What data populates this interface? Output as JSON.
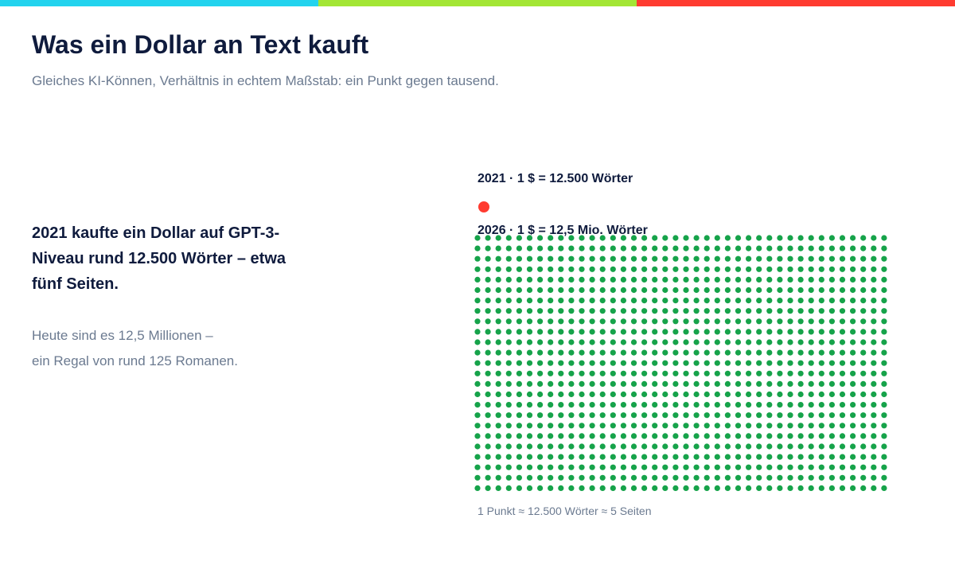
{
  "header": {
    "stripe_colors": [
      "#22d3ee",
      "#a3e635",
      "#ff3b30"
    ],
    "title": "Was ein Dollar an Text kauft",
    "subtitle": "Gleiches KI-Können, Verhältnis in echtem Maßstab: ein Punkt gegen tausend."
  },
  "left": {
    "lead": "2021 kaufte ein Dollar auf GPT-3-Niveau rund 12.500 Wörter – etwa fünf Seiten.",
    "body_lines": [
      "Heute sind es 12,5 Millionen –",
      "ein Regal von rund 125 Romanen."
    ]
  },
  "chart_data": {
    "type": "dot_matrix",
    "title": "",
    "groups": [
      {
        "label": "2021 · 1 $ = 12.500 Wörter",
        "year": 2021,
        "words": 12500,
        "dots": 1,
        "color": "#ff3b30"
      },
      {
        "label": "2026 · 1 $ = 12,5 Mio. Wörter",
        "year": 2026,
        "words": 12500000,
        "dots": 1000,
        "columns": 40,
        "rows": 25,
        "color": "#16a34a"
      }
    ],
    "footnote": "1 Punkt ≈ 12.500 Wörter ≈ 5 Seiten",
    "label_color": "#0f1b3d",
    "footnote_color": "#6b7a90"
  }
}
